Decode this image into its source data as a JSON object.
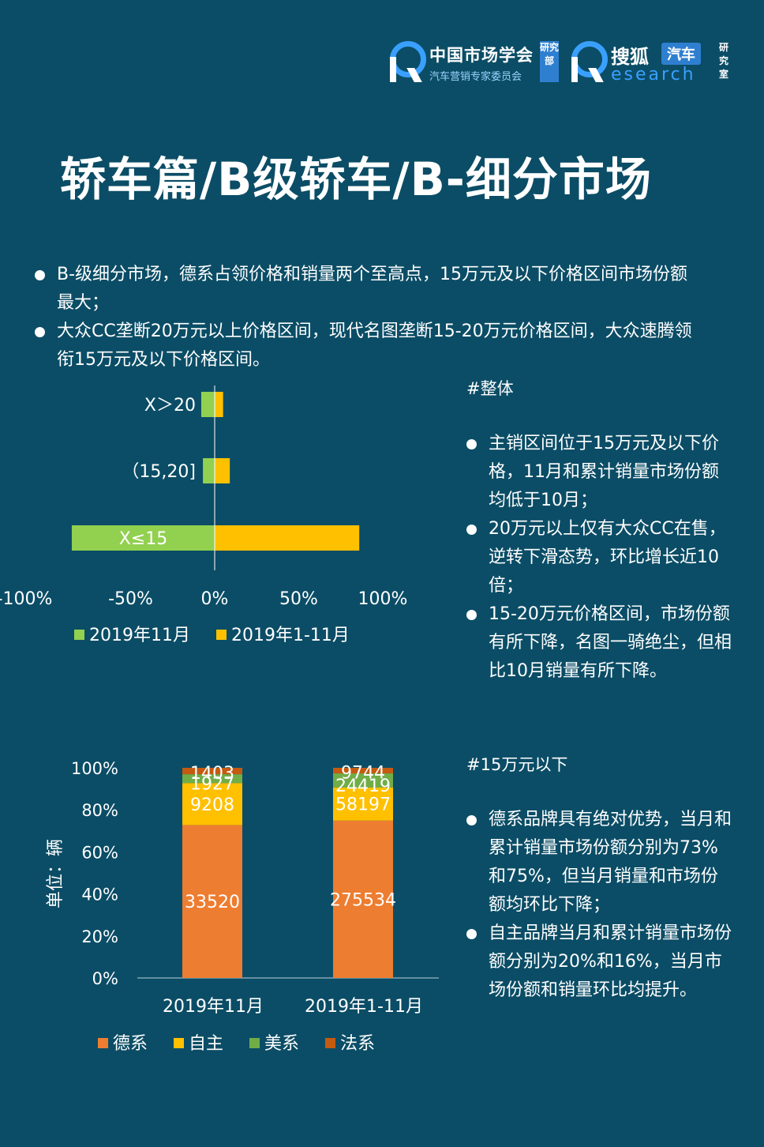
{
  "logos": {
    "cma": {
      "line1": "中国市场学会",
      "line2": "汽车营销专家委员会",
      "tag": "研究部"
    },
    "sohu": {
      "line1": "搜狐",
      "tag": "汽车",
      "line2": "esearch",
      "side": "研究室"
    }
  },
  "title": "轿车篇/B级轿车/B-细分市场",
  "intro_bullets": [
    "B-级细分市场，德系占领价格和销量两个至高点，15万元及以下价格区间市场份额最大；",
    "大众CC垄断20万元以上价格区间，现代名图垄断15-20万元价格区间，大众速腾领衔15万元及以下价格区间。"
  ],
  "section_overall": {
    "heading": "#整体",
    "bullets": [
      "主销区间位于15万元及以下价格，11月和累计销量市场份额均低于10月；",
      "20万元以上仅有大众CC在售，逆转下滑态势，环比增长近10倍；",
      "15-20万元价格区间，市场份额有所下降，名图一骑绝尘，但相比10月销量有所下降。"
    ]
  },
  "section_under15": {
    "heading": "#15万元以下",
    "bullets": [
      "德系品牌具有绝对优势，当月和累计销量市场份额分别为73%和75%，但当月销量和市场份额均环比下降；",
      "自主品牌当月和累计销量市场份额分别为20%和16%，当月市场份额和销量环比均提升。"
    ]
  },
  "colors": {
    "green": "#92d050",
    "yellow": "#ffc000",
    "orange": "#ed7d31",
    "midgreen": "#70ad47",
    "brown": "#c55a11"
  },
  "chart_data": [
    {
      "type": "bar",
      "orientation": "horizontal",
      "categories": [
        "X＞20",
        "（15,20]",
        "X≤15"
      ],
      "series": [
        {
          "name": "2019年11月",
          "values": [
            -8,
            -7,
            -85
          ],
          "color": "#92d050"
        },
        {
          "name": "2019年1-11月",
          "values": [
            5,
            9,
            86
          ],
          "color": "#ffc000"
        }
      ],
      "xlim": [
        -100,
        100
      ],
      "xticks": [
        "-100%",
        "-50%",
        "0%",
        "50%",
        "100%"
      ],
      "xtick_values": [
        -100,
        -50,
        0,
        50,
        100
      ],
      "legend": "bottom"
    },
    {
      "type": "bar",
      "stacked": "percent",
      "categories": [
        "2019年11月",
        "2019年1-11月"
      ],
      "series": [
        {
          "name": "德系",
          "values": [
            33520,
            275534
          ],
          "color": "#ed7d31"
        },
        {
          "name": "自主",
          "values": [
            9208,
            58197
          ],
          "color": "#ffc000"
        },
        {
          "name": "美系",
          "values": [
            1927,
            24419
          ],
          "color": "#70ad47"
        },
        {
          "name": "法系",
          "values": [
            1403,
            9744
          ],
          "color": "#c55a11"
        }
      ],
      "ylabel": "单位：辆",
      "ylim": [
        0,
        100
      ],
      "yticks": [
        "0%",
        "20%",
        "40%",
        "60%",
        "80%",
        "100%"
      ],
      "legend": "bottom"
    }
  ]
}
